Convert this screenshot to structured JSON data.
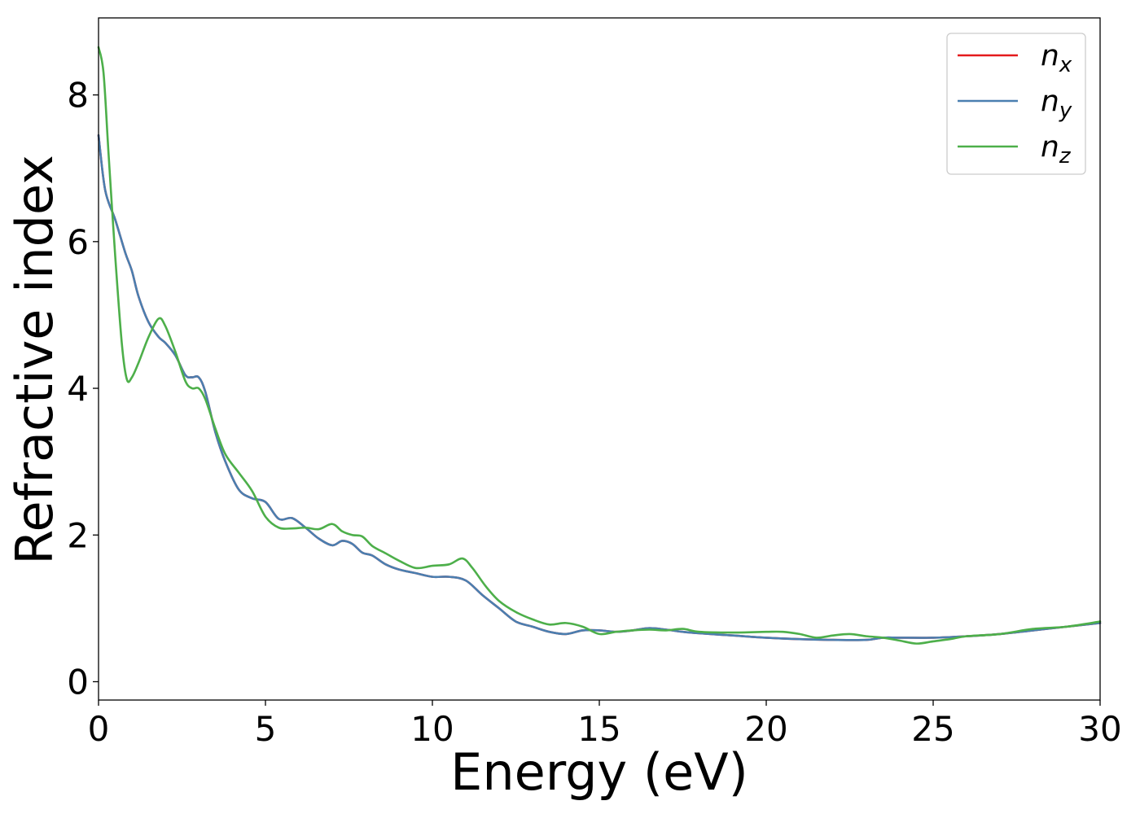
{
  "chart_data": {
    "type": "line",
    "title": "",
    "xlabel": "Energy (eV)",
    "ylabel": "Refractive index",
    "xlim": [
      0,
      30
    ],
    "ylim": [
      -0.25,
      9.05
    ],
    "xticks": [
      0,
      5,
      10,
      15,
      20,
      25,
      30
    ],
    "yticks": [
      0,
      2,
      4,
      6,
      8
    ],
    "grid": false,
    "legend_position": "top-right",
    "series": [
      {
        "name": "n_x",
        "legend_base": "n",
        "legend_sub": "x",
        "color": "#e41a1c",
        "x": [
          0,
          0.2,
          0.5,
          0.8,
          1.0,
          1.2,
          1.5,
          1.8,
          2.0,
          2.3,
          2.6,
          2.8,
          3.0,
          3.2,
          3.5,
          3.8,
          4.2,
          4.6,
          5.0,
          5.4,
          5.8,
          6.2,
          6.6,
          7.0,
          7.3,
          7.6,
          7.9,
          8.2,
          8.6,
          9.0,
          9.5,
          10.0,
          10.5,
          11.0,
          11.5,
          12.0,
          12.5,
          13.0,
          13.5,
          14.0,
          14.5,
          15.0,
          15.5,
          16.0,
          16.5,
          17.0,
          17.5,
          18.0,
          19.0,
          20.0,
          21.0,
          22.0,
          23.0,
          23.5,
          24.0,
          25.0,
          26.0,
          27.0,
          28.0,
          29.0,
          30.0
        ],
        "values": [
          7.45,
          6.7,
          6.3,
          5.85,
          5.6,
          5.25,
          4.9,
          4.7,
          4.62,
          4.45,
          4.18,
          4.15,
          4.15,
          3.95,
          3.4,
          3.0,
          2.62,
          2.5,
          2.45,
          2.22,
          2.23,
          2.1,
          1.95,
          1.86,
          1.92,
          1.88,
          1.76,
          1.72,
          1.6,
          1.53,
          1.48,
          1.43,
          1.43,
          1.38,
          1.18,
          1.0,
          0.82,
          0.75,
          0.68,
          0.65,
          0.7,
          0.7,
          0.68,
          0.7,
          0.73,
          0.71,
          0.68,
          0.66,
          0.63,
          0.6,
          0.58,
          0.57,
          0.57,
          0.6,
          0.6,
          0.6,
          0.62,
          0.65,
          0.7,
          0.75,
          0.8
        ]
      },
      {
        "name": "n_y",
        "legend_base": "n",
        "legend_sub": "y",
        "color": "#4a7fb0",
        "x": [
          0,
          0.2,
          0.5,
          0.8,
          1.0,
          1.2,
          1.5,
          1.8,
          2.0,
          2.3,
          2.6,
          2.8,
          3.0,
          3.2,
          3.5,
          3.8,
          4.2,
          4.6,
          5.0,
          5.4,
          5.8,
          6.2,
          6.6,
          7.0,
          7.3,
          7.6,
          7.9,
          8.2,
          8.6,
          9.0,
          9.5,
          10.0,
          10.5,
          11.0,
          11.5,
          12.0,
          12.5,
          13.0,
          13.5,
          14.0,
          14.5,
          15.0,
          15.5,
          16.0,
          16.5,
          17.0,
          17.5,
          18.0,
          19.0,
          20.0,
          21.0,
          22.0,
          23.0,
          23.5,
          24.0,
          25.0,
          26.0,
          27.0,
          28.0,
          29.0,
          30.0
        ],
        "values": [
          7.45,
          6.7,
          6.3,
          5.85,
          5.6,
          5.25,
          4.9,
          4.7,
          4.62,
          4.45,
          4.18,
          4.15,
          4.15,
          3.95,
          3.4,
          3.0,
          2.62,
          2.5,
          2.45,
          2.22,
          2.23,
          2.1,
          1.95,
          1.86,
          1.92,
          1.88,
          1.76,
          1.72,
          1.6,
          1.53,
          1.48,
          1.43,
          1.43,
          1.38,
          1.18,
          1.0,
          0.82,
          0.75,
          0.68,
          0.65,
          0.7,
          0.7,
          0.68,
          0.7,
          0.73,
          0.71,
          0.68,
          0.66,
          0.63,
          0.6,
          0.58,
          0.57,
          0.57,
          0.6,
          0.6,
          0.6,
          0.62,
          0.65,
          0.7,
          0.75,
          0.8
        ]
      },
      {
        "name": "n_z",
        "legend_base": "n",
        "legend_sub": "z",
        "color": "#4daf4a",
        "x": [
          0,
          0.15,
          0.3,
          0.5,
          0.7,
          0.85,
          1.0,
          1.2,
          1.5,
          1.8,
          2.0,
          2.3,
          2.6,
          2.8,
          3.0,
          3.2,
          3.5,
          3.8,
          4.2,
          4.6,
          5.0,
          5.4,
          5.8,
          6.2,
          6.6,
          7.0,
          7.3,
          7.6,
          7.9,
          8.2,
          8.6,
          9.0,
          9.5,
          10.0,
          10.5,
          10.9,
          11.2,
          11.6,
          12.0,
          12.5,
          13.0,
          13.5,
          14.0,
          14.5,
          15.0,
          15.5,
          16.0,
          16.5,
          17.0,
          17.5,
          18.0,
          19.0,
          20.0,
          20.5,
          21.0,
          21.5,
          22.0,
          22.5,
          23.0,
          23.5,
          24.0,
          24.5,
          25.0,
          25.5,
          26.0,
          27.0,
          28.0,
          29.0,
          30.0
        ],
        "values": [
          8.65,
          8.3,
          7.2,
          5.8,
          4.6,
          4.12,
          4.15,
          4.35,
          4.7,
          4.95,
          4.85,
          4.5,
          4.1,
          4.0,
          4.0,
          3.85,
          3.45,
          3.1,
          2.85,
          2.6,
          2.25,
          2.1,
          2.09,
          2.1,
          2.08,
          2.15,
          2.05,
          2.0,
          1.98,
          1.85,
          1.75,
          1.65,
          1.55,
          1.58,
          1.6,
          1.68,
          1.55,
          1.3,
          1.1,
          0.95,
          0.85,
          0.78,
          0.8,
          0.75,
          0.65,
          0.68,
          0.7,
          0.71,
          0.7,
          0.72,
          0.68,
          0.67,
          0.68,
          0.68,
          0.65,
          0.6,
          0.63,
          0.65,
          0.62,
          0.6,
          0.56,
          0.52,
          0.55,
          0.58,
          0.62,
          0.65,
          0.72,
          0.75,
          0.82
        ]
      }
    ]
  }
}
